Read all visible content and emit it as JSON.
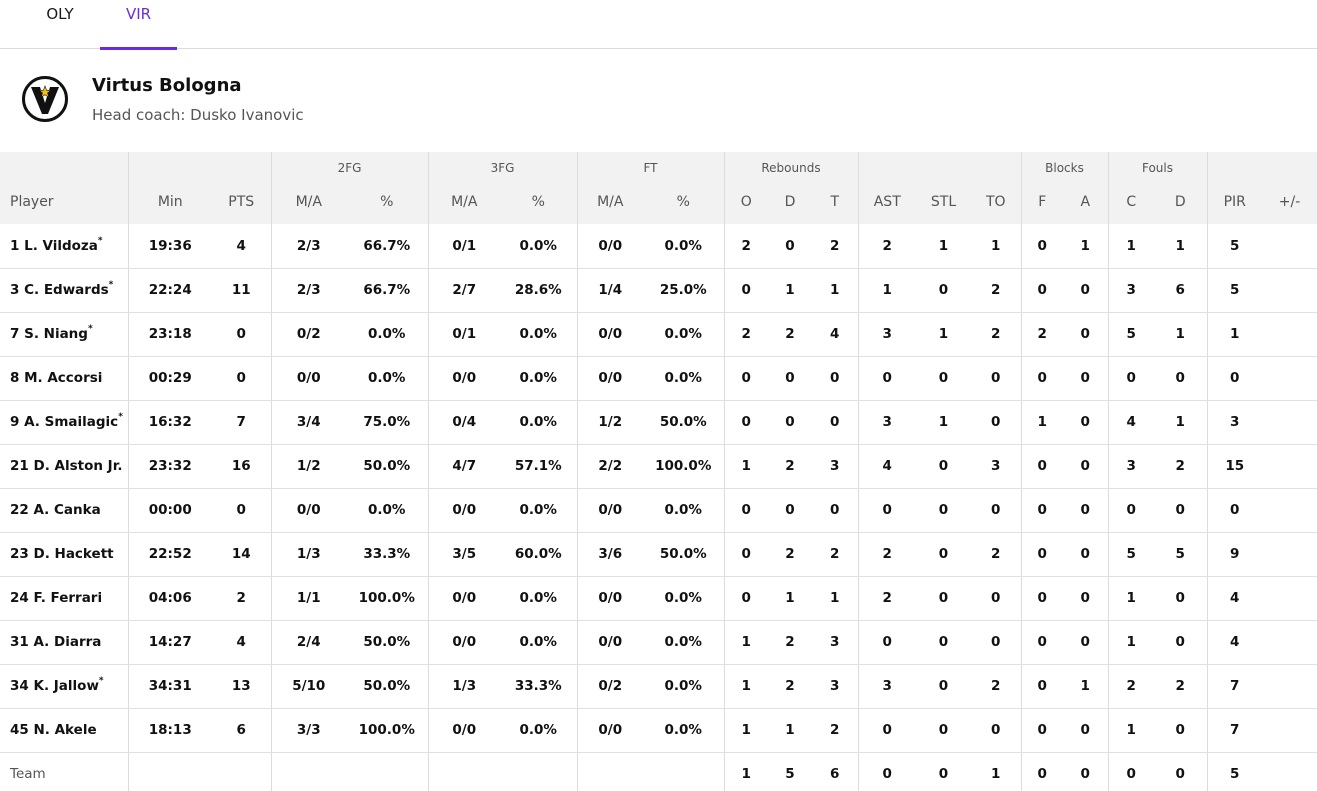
{
  "tabs": [
    {
      "label": "OLY",
      "active": false
    },
    {
      "label": "VIR",
      "active": true
    }
  ],
  "accent_color": "#6a2be0",
  "team": {
    "name": "Virtus Bologna",
    "coach": "Head coach: Dusko Ivanovic",
    "logo_icon": "virtus-v-star-logo-icon"
  },
  "table": {
    "groups": {
      "fg2": "2FG",
      "fg3": "3FG",
      "ft": "FT",
      "rebounds": "Rebounds",
      "blocks": "Blocks",
      "fouls": "Fouls"
    },
    "columns": [
      "Player",
      "Min",
      "PTS",
      "M/A",
      "%",
      "M/A",
      "%",
      "M/A",
      "%",
      "O",
      "D",
      "T",
      "AST",
      "STL",
      "TO",
      "F",
      "A",
      "C",
      "D",
      "PIR",
      "+/-"
    ],
    "rows": [
      {
        "player": "1 L. Vildoza",
        "starter": true,
        "stats": [
          "19:36",
          "4",
          "2/3",
          "66.7%",
          "0/1",
          "0.0%",
          "0/0",
          "0.0%",
          "2",
          "0",
          "2",
          "2",
          "1",
          "1",
          "0",
          "1",
          "1",
          "1",
          "5",
          ""
        ]
      },
      {
        "player": "3 C. Edwards",
        "starter": true,
        "stats": [
          "22:24",
          "11",
          "2/3",
          "66.7%",
          "2/7",
          "28.6%",
          "1/4",
          "25.0%",
          "0",
          "1",
          "1",
          "1",
          "0",
          "2",
          "0",
          "0",
          "3",
          "6",
          "5",
          ""
        ]
      },
      {
        "player": "7 S. Niang",
        "starter": true,
        "stats": [
          "23:18",
          "0",
          "0/2",
          "0.0%",
          "0/1",
          "0.0%",
          "0/0",
          "0.0%",
          "2",
          "2",
          "4",
          "3",
          "1",
          "2",
          "2",
          "0",
          "5",
          "1",
          "1",
          ""
        ]
      },
      {
        "player": "8 M. Accorsi",
        "starter": false,
        "stats": [
          "00:29",
          "0",
          "0/0",
          "0.0%",
          "0/0",
          "0.0%",
          "0/0",
          "0.0%",
          "0",
          "0",
          "0",
          "0",
          "0",
          "0",
          "0",
          "0",
          "0",
          "0",
          "0",
          ""
        ]
      },
      {
        "player": "9 A. Smailagic",
        "starter": true,
        "stats": [
          "16:32",
          "7",
          "3/4",
          "75.0%",
          "0/4",
          "0.0%",
          "1/2",
          "50.0%",
          "0",
          "0",
          "0",
          "3",
          "1",
          "0",
          "1",
          "0",
          "4",
          "1",
          "3",
          ""
        ]
      },
      {
        "player": "21 D. Alston Jr.",
        "starter": false,
        "stats": [
          "23:32",
          "16",
          "1/2",
          "50.0%",
          "4/7",
          "57.1%",
          "2/2",
          "100.0%",
          "1",
          "2",
          "3",
          "4",
          "0",
          "3",
          "0",
          "0",
          "3",
          "2",
          "15",
          ""
        ]
      },
      {
        "player": "22 A. Canka",
        "starter": false,
        "stats": [
          "00:00",
          "0",
          "0/0",
          "0.0%",
          "0/0",
          "0.0%",
          "0/0",
          "0.0%",
          "0",
          "0",
          "0",
          "0",
          "0",
          "0",
          "0",
          "0",
          "0",
          "0",
          "0",
          ""
        ]
      },
      {
        "player": "23 D. Hackett",
        "starter": false,
        "stats": [
          "22:52",
          "14",
          "1/3",
          "33.3%",
          "3/5",
          "60.0%",
          "3/6",
          "50.0%",
          "0",
          "2",
          "2",
          "2",
          "0",
          "2",
          "0",
          "0",
          "5",
          "5",
          "9",
          ""
        ]
      },
      {
        "player": "24 F. Ferrari",
        "starter": false,
        "stats": [
          "04:06",
          "2",
          "1/1",
          "100.0%",
          "0/0",
          "0.0%",
          "0/0",
          "0.0%",
          "0",
          "1",
          "1",
          "2",
          "0",
          "0",
          "0",
          "0",
          "1",
          "0",
          "4",
          ""
        ]
      },
      {
        "player": "31 A. Diarra",
        "starter": false,
        "stats": [
          "14:27",
          "4",
          "2/4",
          "50.0%",
          "0/0",
          "0.0%",
          "0/0",
          "0.0%",
          "1",
          "2",
          "3",
          "0",
          "0",
          "0",
          "0",
          "0",
          "1",
          "0",
          "4",
          ""
        ]
      },
      {
        "player": "34 K. Jallow",
        "starter": true,
        "stats": [
          "34:31",
          "13",
          "5/10",
          "50.0%",
          "1/3",
          "33.3%",
          "0/2",
          "0.0%",
          "1",
          "2",
          "3",
          "3",
          "0",
          "2",
          "0",
          "1",
          "2",
          "2",
          "7",
          ""
        ]
      },
      {
        "player": "45 N. Akele",
        "starter": false,
        "stats": [
          "18:13",
          "6",
          "3/3",
          "100.0%",
          "0/0",
          "0.0%",
          "0/0",
          "0.0%",
          "1",
          "1",
          "2",
          "0",
          "0",
          "0",
          "0",
          "0",
          "1",
          "0",
          "7",
          ""
        ]
      }
    ],
    "team_row": {
      "label": "Team",
      "stats": [
        "",
        "",
        "",
        "",
        "",
        "",
        "",
        "",
        "1",
        "5",
        "6",
        "0",
        "0",
        "1",
        "0",
        "0",
        "0",
        "0",
        "5",
        ""
      ]
    }
  }
}
